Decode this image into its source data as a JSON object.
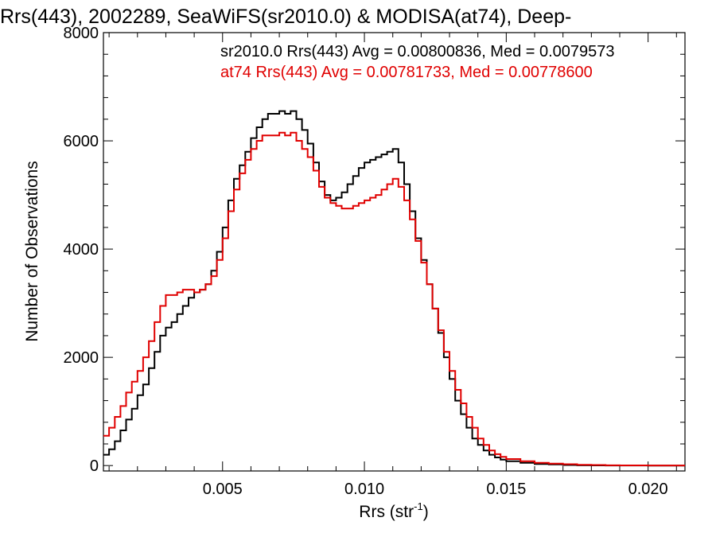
{
  "chart_data": {
    "type": "line",
    "title": "Rrs(443), 2002289, SeaWiFS(sr2010.0) & MODISA(at74), Deep-",
    "xlabel_main": "Rrs (str",
    "xlabel_sup": "-1",
    "xlabel_tail": ")",
    "ylabel": "Number of Observations",
    "xlim": [
      0.0008,
      0.0213
    ],
    "ylim": [
      -100,
      8000
    ],
    "xticks": [
      0.005,
      0.01,
      0.015,
      0.02
    ],
    "xtick_labels": [
      "0.005",
      "0.010",
      "0.015",
      "0.020"
    ],
    "yticks": [
      0,
      2000,
      4000,
      6000,
      8000
    ],
    "ytick_labels": [
      "0",
      "2000",
      "4000",
      "6000",
      "8000"
    ],
    "annotations": [
      {
        "text": "sr2010.0 Rrs(443) Avg = 0.00800836, Med = 0.0079573",
        "color": "#000000"
      },
      {
        "text": "at74 Rrs(443) Avg = 0.00781733, Med = 0.00778600",
        "color": "#e00000"
      }
    ],
    "series": [
      {
        "color": "#000000",
        "x": [
          0.0008,
          0.001,
          0.0012,
          0.0014,
          0.0016,
          0.0018,
          0.002,
          0.0022,
          0.0024,
          0.0026,
          0.0028,
          0.003,
          0.0032,
          0.0034,
          0.0036,
          0.0038,
          0.004,
          0.0042,
          0.0044,
          0.0046,
          0.0048,
          0.005,
          0.0052,
          0.0054,
          0.0056,
          0.0058,
          0.006,
          0.0062,
          0.0064,
          0.0066,
          0.0068,
          0.007,
          0.0072,
          0.0074,
          0.0076,
          0.0078,
          0.008,
          0.0082,
          0.0084,
          0.0086,
          0.0088,
          0.009,
          0.0092,
          0.0094,
          0.0096,
          0.0098,
          0.01,
          0.0102,
          0.0104,
          0.0106,
          0.0108,
          0.011,
          0.0112,
          0.0114,
          0.0116,
          0.0118,
          0.012,
          0.0122,
          0.0124,
          0.0126,
          0.0128,
          0.013,
          0.0132,
          0.0134,
          0.0136,
          0.0138,
          0.014,
          0.0142,
          0.0144,
          0.0146,
          0.0148,
          0.015,
          0.0155,
          0.016,
          0.0165,
          0.017,
          0.0175,
          0.018,
          0.0185,
          0.019,
          0.02,
          0.0213
        ],
        "y": [
          200,
          300,
          450,
          650,
          850,
          1050,
          1300,
          1500,
          1800,
          2100,
          2400,
          2550,
          2650,
          2800,
          2950,
          3100,
          3200,
          3250,
          3350,
          3600,
          3950,
          4400,
          4900,
          5300,
          5550,
          5800,
          6050,
          6250,
          6400,
          6500,
          6500,
          6550,
          6500,
          6550,
          6400,
          6200,
          5950,
          5600,
          5250,
          5000,
          4900,
          4950,
          5050,
          5200,
          5350,
          5500,
          5600,
          5650,
          5700,
          5750,
          5800,
          5850,
          5600,
          5200,
          4700,
          4200,
          3800,
          3350,
          2900,
          2450,
          2000,
          1600,
          1200,
          950,
          700,
          500,
          380,
          280,
          200,
          150,
          110,
          80,
          50,
          30,
          20,
          10,
          5,
          3,
          2,
          1,
          0,
          0
        ]
      },
      {
        "color": "#e00000",
        "x": [
          0.0008,
          0.001,
          0.0012,
          0.0014,
          0.0016,
          0.0018,
          0.002,
          0.0022,
          0.0024,
          0.0026,
          0.0028,
          0.003,
          0.0032,
          0.0034,
          0.0036,
          0.0038,
          0.004,
          0.0042,
          0.0044,
          0.0046,
          0.0048,
          0.005,
          0.0052,
          0.0054,
          0.0056,
          0.0058,
          0.006,
          0.0062,
          0.0064,
          0.0066,
          0.0068,
          0.007,
          0.0072,
          0.0074,
          0.0076,
          0.0078,
          0.008,
          0.0082,
          0.0084,
          0.0086,
          0.0088,
          0.009,
          0.0092,
          0.0094,
          0.0096,
          0.0098,
          0.01,
          0.0102,
          0.0104,
          0.0106,
          0.0108,
          0.011,
          0.0112,
          0.0114,
          0.0116,
          0.0118,
          0.012,
          0.0122,
          0.0124,
          0.0126,
          0.0128,
          0.013,
          0.0132,
          0.0134,
          0.0136,
          0.0138,
          0.014,
          0.0142,
          0.0144,
          0.0146,
          0.0148,
          0.015,
          0.0155,
          0.016,
          0.0165,
          0.017,
          0.0175,
          0.018,
          0.0185,
          0.019,
          0.02,
          0.0213
        ],
        "y": [
          550,
          700,
          900,
          1100,
          1350,
          1550,
          1750,
          2000,
          2300,
          2650,
          2950,
          3150,
          3150,
          3200,
          3250,
          3250,
          3200,
          3250,
          3350,
          3500,
          3800,
          4200,
          4700,
          5100,
          5400,
          5650,
          5850,
          6000,
          6100,
          6100,
          6100,
          6150,
          6100,
          6150,
          6000,
          5850,
          5700,
          5450,
          5150,
          4950,
          4850,
          4800,
          4750,
          4750,
          4800,
          4850,
          4900,
          4950,
          5000,
          5100,
          5200,
          5300,
          5150,
          4900,
          4550,
          4150,
          3750,
          3350,
          2900,
          2500,
          2100,
          1750,
          1400,
          1150,
          900,
          700,
          500,
          380,
          280,
          210,
          160,
          120,
          80,
          50,
          35,
          25,
          15,
          10,
          5,
          3,
          1,
          0
        ]
      }
    ]
  }
}
